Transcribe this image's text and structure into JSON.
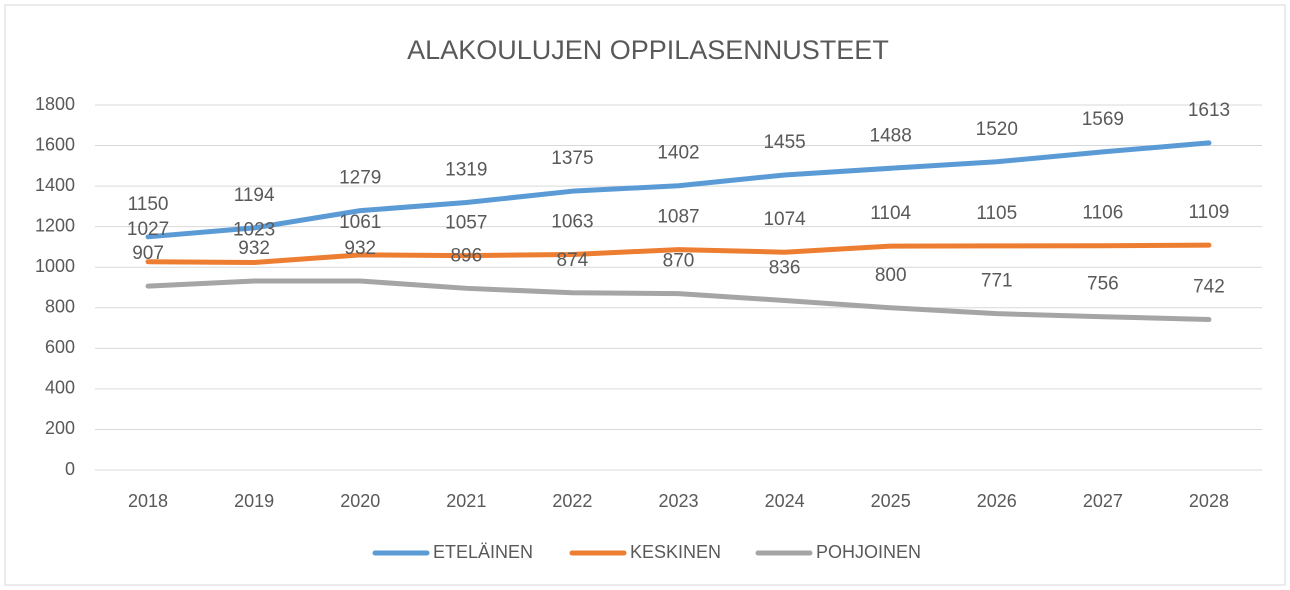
{
  "chart_data": {
    "type": "line",
    "title": "ALAKOULUJEN OPPILASENNUSTEET",
    "categories": [
      "2018",
      "2019",
      "2020",
      "2021",
      "2022",
      "2023",
      "2024",
      "2025",
      "2026",
      "2027",
      "2028"
    ],
    "series": [
      {
        "name": "ETELÄINEN",
        "color": "#5b9bd5",
        "values": [
          1150,
          1194,
          1279,
          1319,
          1375,
          1402,
          1455,
          1488,
          1520,
          1569,
          1613
        ]
      },
      {
        "name": "KESKINEN",
        "color": "#ed7d31",
        "values": [
          1027,
          1023,
          1061,
          1057,
          1063,
          1087,
          1074,
          1104,
          1105,
          1106,
          1109
        ]
      },
      {
        "name": "POHJOINEN",
        "color": "#a5a5a5",
        "values": [
          907,
          932,
          932,
          896,
          874,
          870,
          836,
          800,
          771,
          756,
          742
        ]
      }
    ],
    "ylim": [
      0,
      1800
    ],
    "yticks": [
      0,
      200,
      400,
      600,
      800,
      1000,
      1200,
      1400,
      1600,
      1800
    ],
    "grid": true,
    "legend": "bottom"
  }
}
